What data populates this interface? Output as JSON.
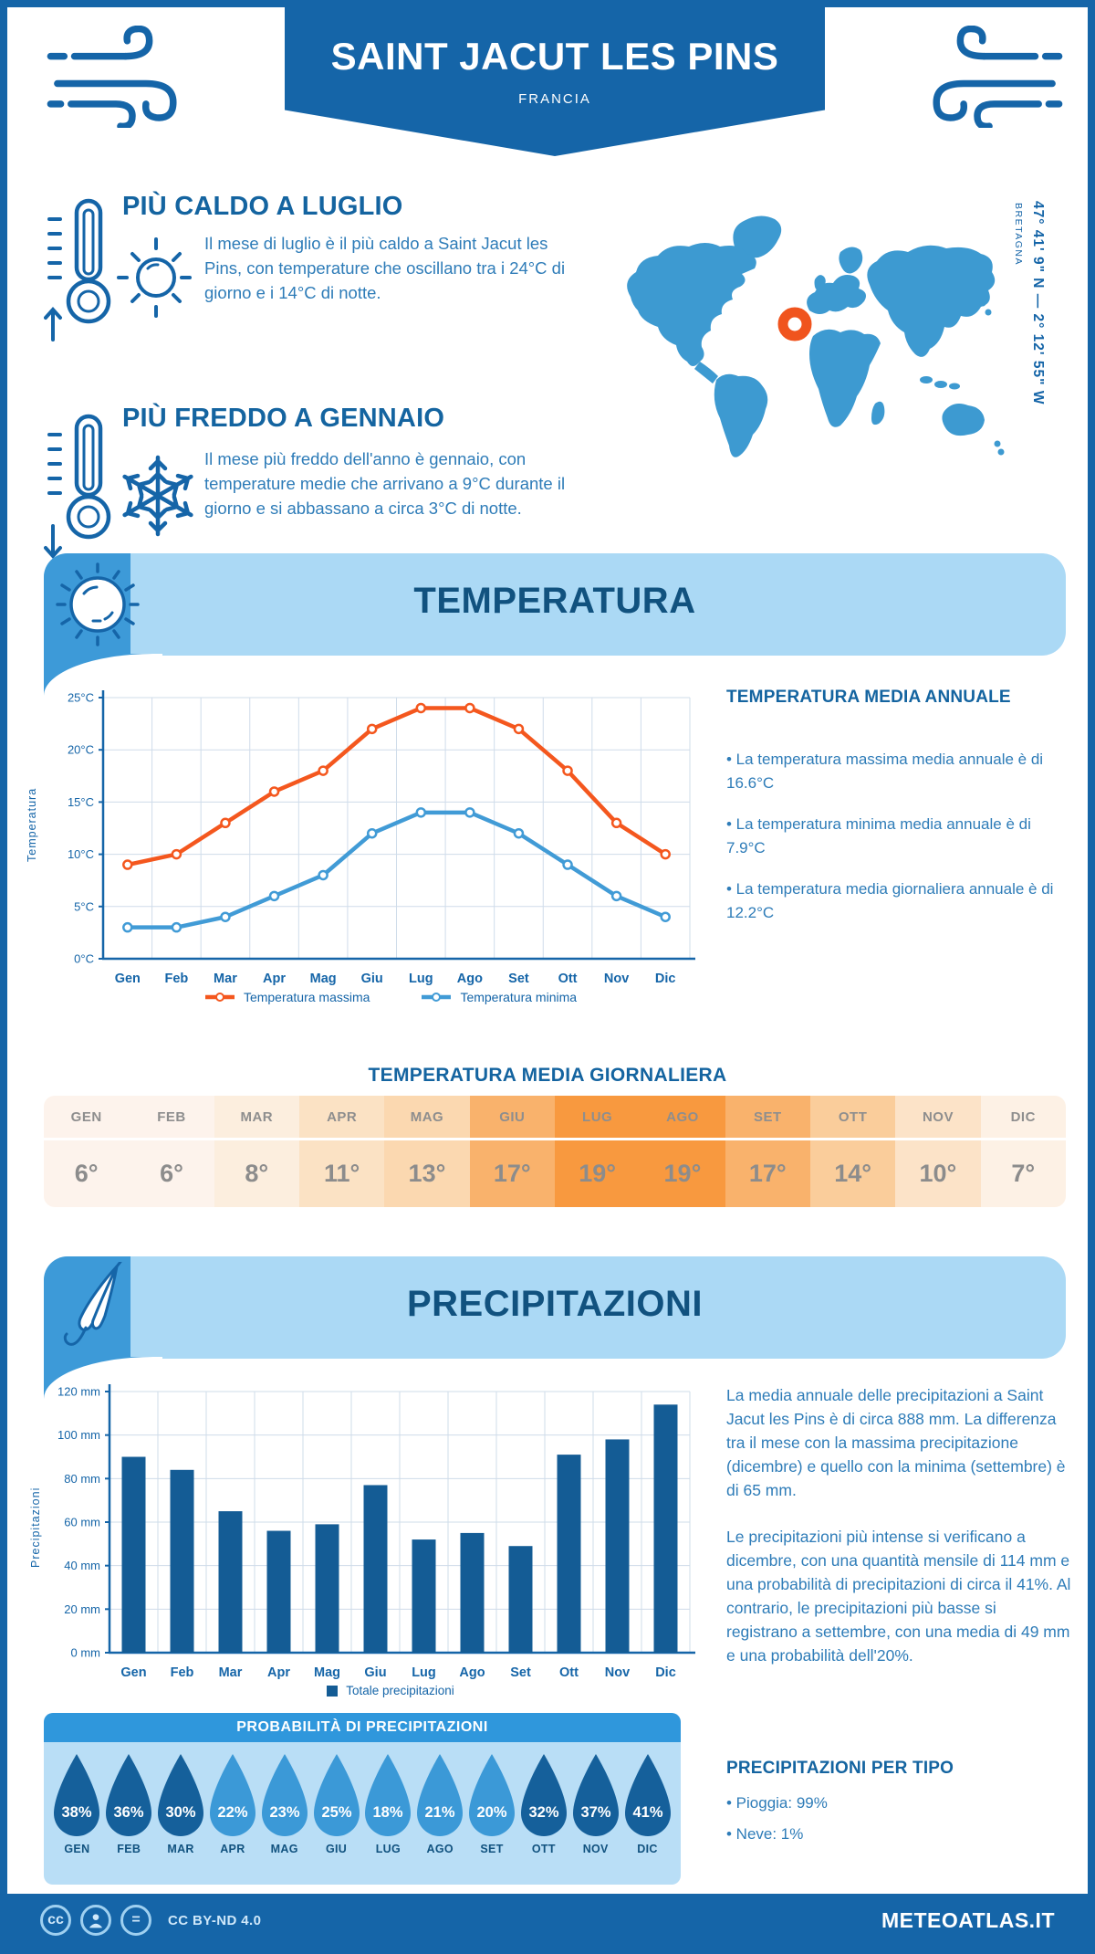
{
  "header": {
    "title": "SAINT JACUT LES PINS",
    "subtitle": "FRANCIA"
  },
  "location": {
    "coords": "47° 41' 9\" N — 2° 12' 55\" W",
    "region": "BRETAGNA"
  },
  "sections": {
    "hot": {
      "title": "PIÙ CALDO A LUGLIO",
      "text": "Il mese di luglio è il più caldo a Saint Jacut les Pins, con temperature che oscillano tra i 24°C di giorno e i 14°C di notte."
    },
    "cold": {
      "title": "PIÙ FREDDO A GENNAIO",
      "text": "Il mese più freddo dell'anno è gennaio, con temperature medie che arrivano a 9°C durante il giorno e si abbassano a circa 3°C di notte."
    }
  },
  "temperature": {
    "band_title": "TEMPERATURA",
    "annual_title": "TEMPERATURA MEDIA ANNUALE",
    "bullets": [
      "• La temperatura massima media annuale è di 16.6°C",
      "• La temperatura minima media annuale è di 7.9°C",
      "• La temperatura media giornaliera annuale è di 12.2°C"
    ],
    "daily_title": "TEMPERATURA MEDIA GIORNALIERA",
    "table": {
      "months": [
        "GEN",
        "FEB",
        "MAR",
        "APR",
        "MAG",
        "GIU",
        "LUG",
        "AGO",
        "SET",
        "OTT",
        "NOV",
        "DIC"
      ],
      "values": [
        "6°",
        "6°",
        "8°",
        "11°",
        "13°",
        "17°",
        "19°",
        "19°",
        "17°",
        "14°",
        "10°",
        "7°"
      ],
      "colors": [
        "#fdf3ec",
        "#fdf3ec",
        "#fceede",
        "#fbe2c4",
        "#fbd8b0",
        "#f9b26c",
        "#f8993f",
        "#f8993f",
        "#f9b26c",
        "#facd9b",
        "#fce3c8",
        "#fdf1e5"
      ]
    }
  },
  "precipitation": {
    "band_title": "PRECIPITAZIONI",
    "paragraphs": [
      "La media annuale delle precipitazioni a Saint Jacut les Pins è di circa 888 mm. La differenza tra il mese con la massima precipitazione (dicembre) e quello con la minima (settembre) è di 65 mm.",
      "Le precipitazioni più intense si verificano a dicembre, con una quantità mensile di 114 mm e una probabilità di precipitazioni di circa il 41%. Al contrario, le precipitazioni più basse si registrano a settembre, con una media di 49 mm e una probabilità dell'20%."
    ],
    "probability": {
      "title": "PROBABILITÀ DI PRECIPITAZIONI",
      "months": [
        "GEN",
        "FEB",
        "MAR",
        "APR",
        "MAG",
        "GIU",
        "LUG",
        "AGO",
        "SET",
        "OTT",
        "NOV",
        "DIC"
      ],
      "percents": [
        "38%",
        "36%",
        "30%",
        "22%",
        "23%",
        "25%",
        "18%",
        "21%",
        "20%",
        "32%",
        "37%",
        "41%"
      ],
      "dark": [
        true,
        true,
        true,
        false,
        false,
        false,
        false,
        false,
        false,
        true,
        true,
        true
      ]
    },
    "type_title": "PRECIPITAZIONI PER TIPO",
    "type_bullets": [
      "• Pioggia: 99%",
      "• Neve: 1%"
    ]
  },
  "chart_data": [
    {
      "type": "line",
      "title": "Temperatura",
      "categories": [
        "Gen",
        "Feb",
        "Mar",
        "Apr",
        "Mag",
        "Giu",
        "Lug",
        "Ago",
        "Set",
        "Ott",
        "Nov",
        "Dic"
      ],
      "series": [
        {
          "name": "Temperatura massima",
          "color": "#f4571e",
          "values": [
            9,
            10,
            13,
            16,
            18,
            22,
            24,
            24,
            22,
            18,
            13,
            10
          ]
        },
        {
          "name": "Temperatura minima",
          "color": "#419bd6",
          "values": [
            3,
            3,
            4,
            6,
            8,
            12,
            14,
            14,
            12,
            9,
            6,
            4
          ]
        }
      ],
      "ylabel": "Temperatura",
      "ylim": [
        0,
        25
      ],
      "ytick_step": 5,
      "yticks": [
        "0°C",
        "5°C",
        "10°C",
        "15°C",
        "20°C",
        "25°C"
      ],
      "grid": true,
      "legend_position": "bottom"
    },
    {
      "type": "bar",
      "title": "Precipitazioni",
      "categories": [
        "Gen",
        "Feb",
        "Mar",
        "Apr",
        "Mag",
        "Giu",
        "Lug",
        "Ago",
        "Set",
        "Ott",
        "Nov",
        "Dic"
      ],
      "series": [
        {
          "name": "Totale precipitazioni",
          "color": "#145c95",
          "values": [
            90,
            84,
            65,
            56,
            59,
            77,
            52,
            55,
            49,
            91,
            98,
            114
          ]
        }
      ],
      "ylabel": "Precipitazioni",
      "ylim": [
        0,
        120
      ],
      "ytick_step": 20,
      "yticks": [
        "0 mm",
        "20 mm",
        "40 mm",
        "60 mm",
        "80 mm",
        "100 mm",
        "120 mm"
      ],
      "grid": true,
      "legend_position": "bottom"
    }
  ],
  "colors": {
    "dark_blue": "#1565a8",
    "band_blue": "#abd9f5",
    "tab_blue": "#3d9ad8",
    "map_blue": "#3d9ad1",
    "marker_orange": "#f0541e",
    "drop_dark": "#15609b",
    "drop_light": "#3b99d7",
    "grid": "#cfdcea"
  },
  "footer": {
    "license": "CC BY-ND 4.0",
    "brand": "METEOATLAS.IT"
  }
}
